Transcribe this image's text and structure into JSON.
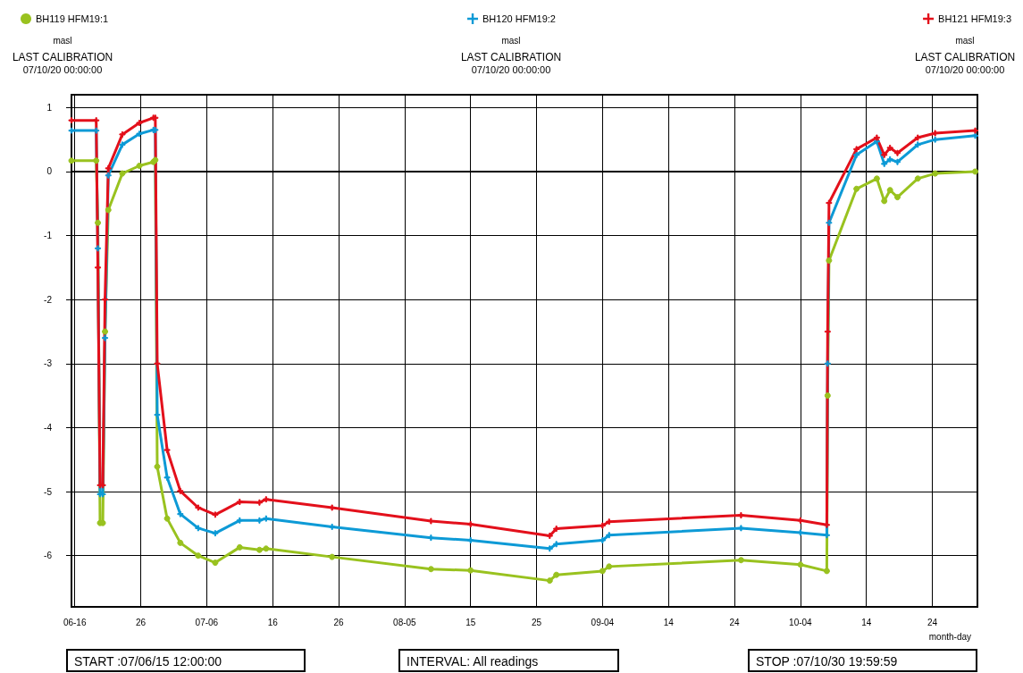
{
  "chart_data": {
    "type": "line",
    "xlabel": "month-day",
    "x": [
      "--06-15T12:00",
      "--06-19T06:00",
      "--06-19T12:00",
      "--06-19T20:00",
      "--06-20T06:00",
      "--06-20T14:00",
      "--06-21T02:00",
      "--06-23T05:00",
      "--06-25T19:00",
      "--06-27T22:00",
      "--06-28T05:00",
      "--06-28T12:00",
      "--06-30",
      "--07-02",
      "--07-04T17:00",
      "--07-07T07:00",
      "--07-11",
      "--07-14",
      "--07-15",
      "--07-25",
      "--08-09",
      "--08-15",
      "--08-27",
      "--08-28",
      "--09-04",
      "--09-05",
      "--09-25",
      "--10-04",
      "--10-08",
      "--10-08T03:00",
      "--10-08T08:00",
      "--10-12T12:00",
      "--10-15T14:00",
      "--10-16T17:00",
      "--10-17T14:00",
      "--10-18T17:00",
      "--10-21T19:00",
      "--10-24T10:00",
      "--10-30T12:00"
    ],
    "series": [
      {
        "name": "BH119 HFM19:1",
        "color": "#99c21f",
        "marker": "circle",
        "values": [
          0.17,
          0.17,
          -0.8,
          -5.49,
          -5.49,
          -2.5,
          -0.6,
          -0.03,
          0.09,
          0.15,
          0.18,
          -4.61,
          -5.42,
          -5.8,
          -6.0,
          -6.11,
          -5.87,
          -5.91,
          -5.89,
          -6.02,
          -6.21,
          -6.23,
          -6.39,
          -6.3,
          -6.24,
          -6.17,
          -6.07,
          -6.14,
          -6.24,
          -3.5,
          -1.39,
          -0.27,
          -0.11,
          -0.46,
          -0.29,
          -0.4,
          -0.11,
          -0.03,
          0.0
        ]
      },
      {
        "name": "BH120 HFM19:2",
        "color": "#0d9ad6",
        "marker": "cross",
        "values": [
          0.64,
          0.64,
          -1.2,
          -5.04,
          -5.04,
          -2.6,
          -0.06,
          0.42,
          0.59,
          0.65,
          0.65,
          -3.8,
          -4.78,
          -5.35,
          -5.57,
          -5.65,
          -5.45,
          -5.45,
          -5.42,
          -5.55,
          -5.72,
          -5.76,
          -5.89,
          -5.82,
          -5.76,
          -5.68,
          -5.57,
          -5.64,
          -5.68,
          -3.0,
          -0.8,
          0.26,
          0.47,
          0.12,
          0.19,
          0.15,
          0.42,
          0.5,
          0.56
        ]
      },
      {
        "name": "BH121 HFM19:3",
        "color": "#e3101b",
        "marker": "cross",
        "values": [
          0.8,
          0.8,
          -1.5,
          -4.9,
          -4.9,
          -2.0,
          0.05,
          0.58,
          0.76,
          0.84,
          0.84,
          -3.0,
          -4.35,
          -4.99,
          -5.25,
          -5.36,
          -5.16,
          -5.17,
          -5.12,
          -5.25,
          -5.46,
          -5.51,
          -5.69,
          -5.58,
          -5.53,
          -5.47,
          -5.37,
          -5.45,
          -5.52,
          -2.5,
          -0.49,
          0.35,
          0.53,
          0.26,
          0.37,
          0.29,
          0.53,
          0.6,
          0.64
        ]
      }
    ],
    "xlim": [
      "--06-15T12:00",
      "--10-30T19:59"
    ],
    "xticks": [
      {
        "value": "--06-16",
        "label": "06-16"
      },
      {
        "value": "--06-26",
        "label": "26"
      },
      {
        "value": "--07-06",
        "label": "07-06"
      },
      {
        "value": "--07-16",
        "label": "16"
      },
      {
        "value": "--07-26",
        "label": "26"
      },
      {
        "value": "--08-05",
        "label": "08-05"
      },
      {
        "value": "--08-15",
        "label": "15"
      },
      {
        "value": "--08-25",
        "label": "25"
      },
      {
        "value": "--09-04",
        "label": "09-04"
      },
      {
        "value": "--09-14",
        "label": "14"
      },
      {
        "value": "--09-24",
        "label": "24"
      },
      {
        "value": "--10-04",
        "label": "10-04"
      },
      {
        "value": "--10-14",
        "label": "14"
      },
      {
        "value": "--10-24",
        "label": "24"
      }
    ],
    "ylim": [
      -6.8,
      1.2
    ],
    "yticks": [
      1,
      0,
      -1,
      -2,
      -3,
      -4,
      -5,
      -6
    ],
    "grid": true,
    "legend": "top",
    "line_style": "solid",
    "annotations": [
      "masl",
      "LAST CALIBRATION",
      "07/10/20 00:00:00",
      "masl",
      "LAST CALIBRATION",
      "07/10/20 00:00:00",
      "masl",
      "LAST CALIBRATION",
      "07/10/20 00:00:00",
      "START :07/06/15 12:00:00",
      "INTERVAL: All readings",
      "STOP :07/10/30 19:59:59"
    ]
  }
}
